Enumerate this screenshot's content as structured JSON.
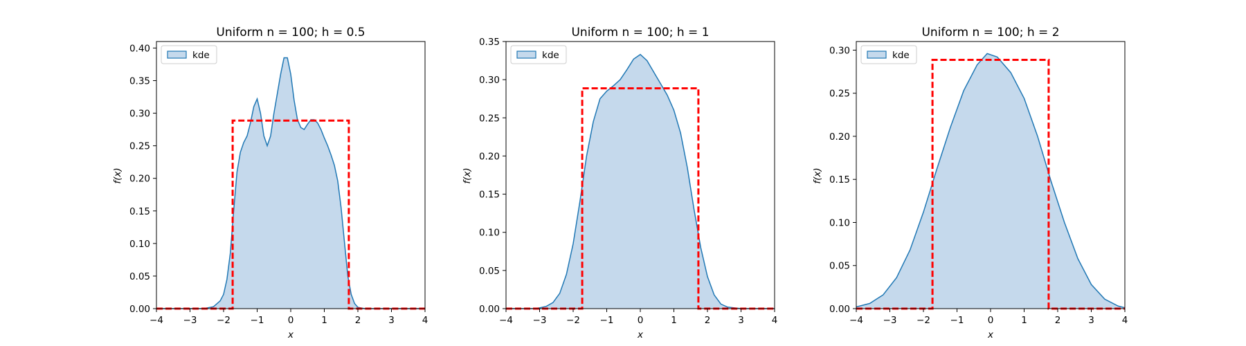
{
  "figure": {
    "panels": [
      {
        "title": "Uniform n = 100; h = 0.5",
        "xlabel": "x",
        "ylabel": "f(x)",
        "legend_label": "kde"
      },
      {
        "title": "Uniform n = 100; h = 1",
        "xlabel": "x",
        "ylabel": "f(x)",
        "legend_label": "kde"
      },
      {
        "title": "Uniform n = 100; h = 2",
        "xlabel": "x",
        "ylabel": "f(x)",
        "legend_label": "kde"
      }
    ]
  },
  "colors": {
    "kde_line": "#1f77b4",
    "kde_fill": "#c5d9ec",
    "reference_line": "#ff0000"
  },
  "chart_data": [
    {
      "type": "area",
      "title": "Uniform n = 100; h = 0.5",
      "xlabel": "x",
      "ylabel": "f(x)",
      "xlim": [
        -4,
        4
      ],
      "ylim": [
        0,
        0.41
      ],
      "xticks": [
        -4,
        -3,
        -2,
        -1,
        0,
        1,
        2,
        3,
        4
      ],
      "yticks": [
        0.0,
        0.05,
        0.1,
        0.15,
        0.2,
        0.25,
        0.3,
        0.35,
        0.4
      ],
      "ytick_labels": [
        "0.00",
        "0.05",
        "0.10",
        "0.15",
        "0.20",
        "0.25",
        "0.30",
        "0.35",
        "0.40"
      ],
      "legend": {
        "position": "upper-left",
        "entries": [
          "kde"
        ]
      },
      "grid": false,
      "series": [
        {
          "name": "kde",
          "kind": "filled-line",
          "x": [
            -4,
            -2.6,
            -2.3,
            -2.1,
            -2.0,
            -1.9,
            -1.8,
            -1.7,
            -1.6,
            -1.5,
            -1.4,
            -1.3,
            -1.2,
            -1.1,
            -1.0,
            -0.9,
            -0.8,
            -0.7,
            -0.6,
            -0.5,
            -0.4,
            -0.3,
            -0.2,
            -0.1,
            0.0,
            0.1,
            0.2,
            0.3,
            0.4,
            0.5,
            0.6,
            0.7,
            0.8,
            0.9,
            1.0,
            1.1,
            1.2,
            1.3,
            1.4,
            1.5,
            1.6,
            1.7,
            1.8,
            1.9,
            2.0,
            2.2,
            2.5,
            4
          ],
          "y": [
            0.0,
            0.0,
            0.003,
            0.012,
            0.022,
            0.045,
            0.085,
            0.15,
            0.21,
            0.24,
            0.255,
            0.265,
            0.285,
            0.31,
            0.322,
            0.3,
            0.265,
            0.25,
            0.265,
            0.3,
            0.33,
            0.36,
            0.385,
            0.385,
            0.36,
            0.32,
            0.29,
            0.278,
            0.275,
            0.283,
            0.29,
            0.29,
            0.285,
            0.275,
            0.262,
            0.25,
            0.236,
            0.22,
            0.196,
            0.155,
            0.102,
            0.05,
            0.022,
            0.008,
            0.002,
            0.0,
            0.0,
            0.0
          ]
        },
        {
          "name": "",
          "kind": "dashed-line",
          "x": [
            -4,
            -1.73,
            -1.73,
            1.73,
            1.73,
            4
          ],
          "y": [
            0.0,
            0.0,
            0.2887,
            0.2887,
            0.0,
            0.0
          ]
        }
      ]
    },
    {
      "type": "area",
      "title": "Uniform n = 100; h = 1",
      "xlabel": "x",
      "ylabel": "f(x)",
      "xlim": [
        -4,
        4
      ],
      "ylim": [
        0,
        0.35
      ],
      "xticks": [
        -4,
        -3,
        -2,
        -1,
        0,
        1,
        2,
        3,
        4
      ],
      "yticks": [
        0.0,
        0.05,
        0.1,
        0.15,
        0.2,
        0.25,
        0.3,
        0.35
      ],
      "ytick_labels": [
        "0.00",
        "0.05",
        "0.10",
        "0.15",
        "0.20",
        "0.25",
        "0.30",
        "0.35"
      ],
      "legend": {
        "position": "upper-left",
        "entries": [
          "kde"
        ]
      },
      "grid": false,
      "series": [
        {
          "name": "kde",
          "kind": "filled-line",
          "x": [
            -4,
            -3.2,
            -3.0,
            -2.8,
            -2.6,
            -2.4,
            -2.2,
            -2.0,
            -1.8,
            -1.6,
            -1.4,
            -1.2,
            -1.0,
            -0.8,
            -0.6,
            -0.4,
            -0.2,
            0.0,
            0.2,
            0.4,
            0.6,
            0.8,
            1.0,
            1.2,
            1.4,
            1.6,
            1.8,
            2.0,
            2.2,
            2.4,
            2.6,
            2.8,
            3.0,
            3.2,
            4
          ],
          "y": [
            0.0,
            0.0,
            0.001,
            0.003,
            0.008,
            0.02,
            0.045,
            0.085,
            0.14,
            0.2,
            0.245,
            0.275,
            0.285,
            0.292,
            0.3,
            0.313,
            0.327,
            0.333,
            0.325,
            0.31,
            0.295,
            0.28,
            0.26,
            0.23,
            0.185,
            0.13,
            0.08,
            0.042,
            0.018,
            0.006,
            0.002,
            0.001,
            0.0,
            0.0,
            0.0
          ]
        },
        {
          "name": "",
          "kind": "dashed-line",
          "x": [
            -4,
            -1.73,
            -1.73,
            1.73,
            1.73,
            4
          ],
          "y": [
            0.0,
            0.0,
            0.2887,
            0.2887,
            0.0,
            0.0
          ]
        }
      ]
    },
    {
      "type": "area",
      "title": "Uniform n = 100; h = 2",
      "xlabel": "x",
      "ylabel": "f(x)",
      "xlim": [
        -4,
        4
      ],
      "ylim": [
        0,
        0.31
      ],
      "xticks": [
        -4,
        -3,
        -2,
        -1,
        0,
        1,
        2,
        3,
        4
      ],
      "yticks": [
        0.0,
        0.05,
        0.1,
        0.15,
        0.2,
        0.25,
        0.3
      ],
      "ytick_labels": [
        "0.00",
        "0.05",
        "0.10",
        "0.15",
        "0.20",
        "0.25",
        "0.30"
      ],
      "legend": {
        "position": "upper-left",
        "entries": [
          "kde"
        ]
      },
      "grid": false,
      "series": [
        {
          "name": "kde",
          "kind": "filled-line",
          "x": [
            -4.0,
            -3.6,
            -3.2,
            -2.8,
            -2.4,
            -2.0,
            -1.6,
            -1.2,
            -0.8,
            -0.4,
            -0.1,
            0.2,
            0.6,
            1.0,
            1.4,
            1.8,
            2.2,
            2.6,
            3.0,
            3.4,
            3.8,
            4.0
          ],
          "y": [
            0.002,
            0.006,
            0.016,
            0.036,
            0.068,
            0.112,
            0.162,
            0.21,
            0.253,
            0.283,
            0.296,
            0.292,
            0.274,
            0.244,
            0.2,
            0.148,
            0.1,
            0.058,
            0.028,
            0.011,
            0.003,
            0.001
          ]
        },
        {
          "name": "",
          "kind": "dashed-line",
          "x": [
            -4,
            -1.73,
            -1.73,
            1.73,
            1.73,
            4
          ],
          "y": [
            0.0,
            0.0,
            0.2887,
            0.2887,
            0.0,
            0.0
          ]
        }
      ]
    }
  ]
}
